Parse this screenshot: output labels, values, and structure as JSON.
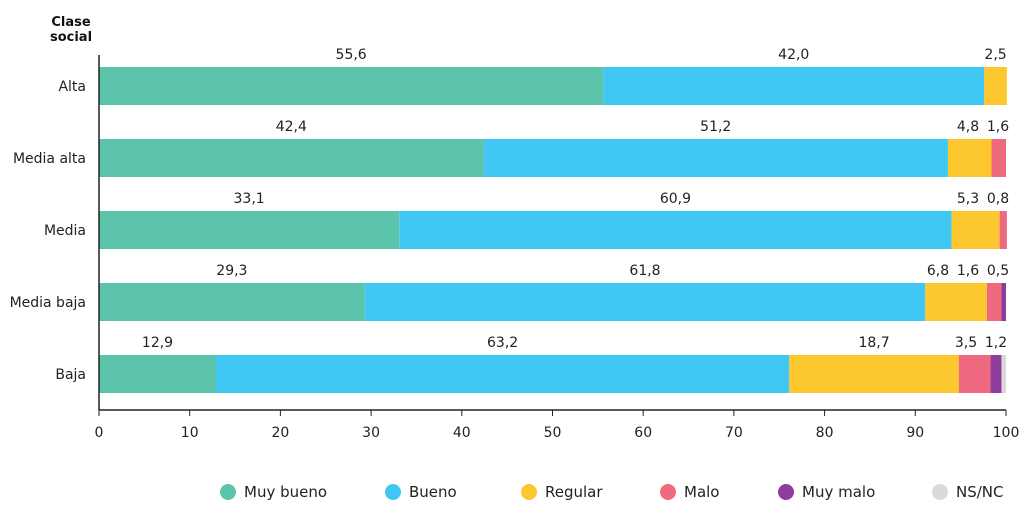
{
  "chart_data": {
    "type": "bar",
    "orientation": "horizontal",
    "stacked": true,
    "ylabel": "Clase social",
    "categories": [
      "Alta",
      "Media alta",
      "Media",
      "Media baja",
      "Baja"
    ],
    "series": [
      {
        "name": "Muy bueno",
        "color": "#5bc4ab",
        "values": [
          55.6,
          42.4,
          33.1,
          29.3,
          12.9
        ],
        "labels": [
          "55,6",
          "42,4",
          "33,1",
          "29,3",
          "12,9"
        ]
      },
      {
        "name": "Bueno",
        "color": "#41c7f4",
        "values": [
          42.0,
          51.2,
          60.9,
          61.8,
          63.2
        ],
        "labels": [
          "42,0",
          "51,2",
          "60,9",
          "61,8",
          "63,2"
        ]
      },
      {
        "name": "Regular",
        "color": "#fdc82f",
        "values": [
          2.5,
          4.8,
          5.3,
          6.8,
          18.7
        ],
        "labels": [
          "2,5",
          "4,8",
          "5,3",
          "6,8",
          "18,7"
        ]
      },
      {
        "name": "Malo",
        "color": "#f06a7f",
        "values": [
          0,
          1.6,
          0.8,
          1.6,
          3.5
        ],
        "labels": [
          "",
          "1,6",
          "0,8",
          "1,6",
          "3,5"
        ]
      },
      {
        "name": "Muy malo",
        "color": "#8e3c9e",
        "values": [
          0,
          0,
          0,
          0.5,
          1.2
        ],
        "labels": [
          "",
          "",
          "",
          "0,5",
          "1,2"
        ]
      },
      {
        "name": "NS/NC",
        "color": "#dadada",
        "values": [
          0,
          0,
          0,
          0,
          0.5
        ],
        "labels": [
          "",
          "",
          "",
          "",
          ""
        ]
      }
    ],
    "xlim": [
      0,
      100
    ],
    "xticks": [
      0,
      10,
      20,
      30,
      40,
      50,
      60,
      70,
      80,
      90,
      100
    ],
    "grid": false,
    "legend": "bottom"
  }
}
